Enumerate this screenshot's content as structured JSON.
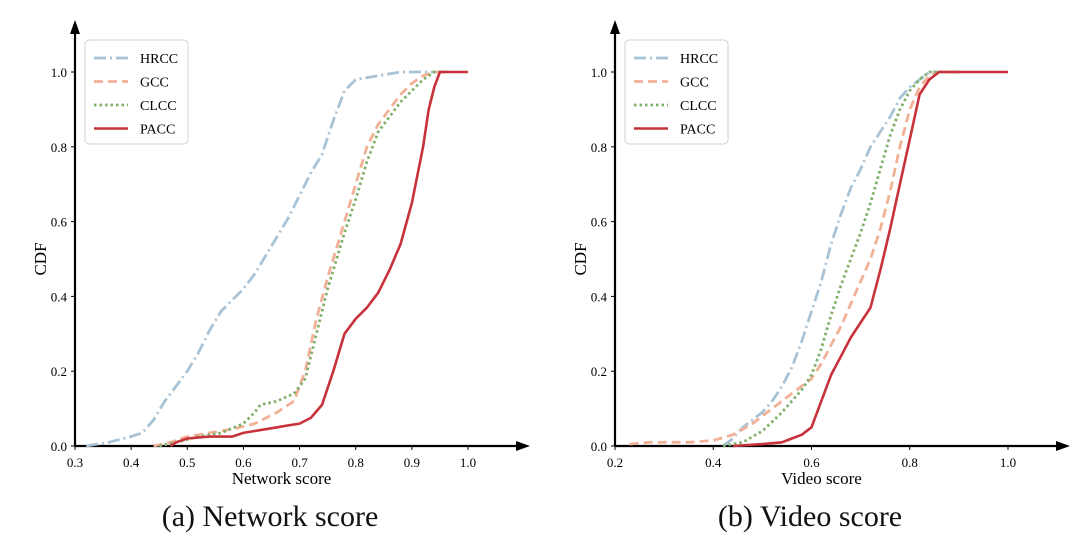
{
  "charts": [
    {
      "caption": "(a) Network score",
      "chart_data": {
        "type": "line",
        "xlabel": "Network score",
        "ylabel": "CDF",
        "xlim": [
          0.3,
          1.0
        ],
        "ylim": [
          0.0,
          1.0
        ],
        "x_ticks": [
          "0.3",
          "0.4",
          "0.5",
          "0.6",
          "0.7",
          "0.8",
          "0.9",
          "1.0"
        ],
        "y_ticks": [
          "0.0",
          "0.2",
          "0.4",
          "0.6",
          "0.8",
          "1.0"
        ],
        "grid": false,
        "legend": "top-left",
        "series": [
          {
            "name": "HRCC",
            "color": "#a9c3d6",
            "dash": "dashdot",
            "points": [
              [
                0.32,
                0.0
              ],
              [
                0.36,
                0.01
              ],
              [
                0.4,
                0.025
              ],
              [
                0.42,
                0.035
              ],
              [
                0.44,
                0.07
              ],
              [
                0.46,
                0.12
              ],
              [
                0.48,
                0.16
              ],
              [
                0.5,
                0.2
              ],
              [
                0.52,
                0.25
              ],
              [
                0.54,
                0.31
              ],
              [
                0.56,
                0.36
              ],
              [
                0.58,
                0.39
              ],
              [
                0.6,
                0.42
              ],
              [
                0.62,
                0.46
              ],
              [
                0.64,
                0.51
              ],
              [
                0.66,
                0.56
              ],
              [
                0.68,
                0.61
              ],
              [
                0.7,
                0.67
              ],
              [
                0.72,
                0.73
              ],
              [
                0.74,
                0.78
              ],
              [
                0.76,
                0.87
              ],
              [
                0.78,
                0.95
              ],
              [
                0.8,
                0.98
              ],
              [
                0.84,
                0.99
              ],
              [
                0.88,
                1.0
              ],
              [
                0.95,
                1.0
              ]
            ]
          },
          {
            "name": "GCC",
            "color": "#f2b196",
            "dash": "dashed",
            "points": [
              [
                0.44,
                0.0
              ],
              [
                0.47,
                0.01
              ],
              [
                0.5,
                0.025
              ],
              [
                0.54,
                0.035
              ],
              [
                0.58,
                0.045
              ],
              [
                0.62,
                0.06
              ],
              [
                0.66,
                0.09
              ],
              [
                0.69,
                0.12
              ],
              [
                0.71,
                0.2
              ],
              [
                0.73,
                0.34
              ],
              [
                0.75,
                0.45
              ],
              [
                0.78,
                0.6
              ],
              [
                0.8,
                0.7
              ],
              [
                0.82,
                0.8
              ],
              [
                0.84,
                0.86
              ],
              [
                0.86,
                0.9
              ],
              [
                0.88,
                0.94
              ],
              [
                0.9,
                0.97
              ],
              [
                0.92,
                0.99
              ],
              [
                0.94,
                1.0
              ],
              [
                0.96,
                1.0
              ]
            ]
          },
          {
            "name": "CLCC",
            "color": "#7fb069",
            "dash": "dotted",
            "points": [
              [
                0.45,
                0.0
              ],
              [
                0.48,
                0.01
              ],
              [
                0.52,
                0.025
              ],
              [
                0.56,
                0.035
              ],
              [
                0.6,
                0.06
              ],
              [
                0.62,
                0.09
              ],
              [
                0.63,
                0.11
              ],
              [
                0.66,
                0.12
              ],
              [
                0.69,
                0.14
              ],
              [
                0.71,
                0.18
              ],
              [
                0.73,
                0.3
              ],
              [
                0.75,
                0.42
              ],
              [
                0.78,
                0.57
              ],
              [
                0.8,
                0.66
              ],
              [
                0.82,
                0.76
              ],
              [
                0.84,
                0.84
              ],
              [
                0.86,
                0.88
              ],
              [
                0.88,
                0.92
              ],
              [
                0.9,
                0.95
              ],
              [
                0.92,
                0.98
              ],
              [
                0.94,
                1.0
              ],
              [
                0.96,
                1.0
              ]
            ]
          },
          {
            "name": "PACC",
            "color": "#c8323a",
            "dash": "solid",
            "points": [
              [
                0.47,
                0.0
              ],
              [
                0.48,
                0.01
              ],
              [
                0.5,
                0.02
              ],
              [
                0.54,
                0.025
              ],
              [
                0.58,
                0.025
              ],
              [
                0.6,
                0.035
              ],
              [
                0.62,
                0.04
              ],
              [
                0.64,
                0.045
              ],
              [
                0.66,
                0.05
              ],
              [
                0.68,
                0.055
              ],
              [
                0.7,
                0.06
              ],
              [
                0.72,
                0.075
              ],
              [
                0.74,
                0.11
              ],
              [
                0.76,
                0.2
              ],
              [
                0.78,
                0.3
              ],
              [
                0.8,
                0.34
              ],
              [
                0.82,
                0.37
              ],
              [
                0.84,
                0.41
              ],
              [
                0.86,
                0.47
              ],
              [
                0.88,
                0.54
              ],
              [
                0.9,
                0.65
              ],
              [
                0.92,
                0.8
              ],
              [
                0.93,
                0.9
              ],
              [
                0.94,
                0.96
              ],
              [
                0.95,
                1.0
              ],
              [
                1.0,
                1.0
              ]
            ]
          }
        ]
      }
    },
    {
      "caption": "(b) Video score",
      "chart_data": {
        "type": "line",
        "xlabel": "Video score",
        "ylabel": "CDF",
        "xlim": [
          0.2,
          1.0
        ],
        "ylim": [
          0.0,
          1.0
        ],
        "x_ticks": [
          "0.2",
          "0.4",
          "0.6",
          "0.8",
          "1.0"
        ],
        "y_ticks": [
          "0.0",
          "0.2",
          "0.4",
          "0.6",
          "0.8",
          "1.0"
        ],
        "grid": false,
        "legend": "top-left",
        "series": [
          {
            "name": "HRCC",
            "color": "#a9c3d6",
            "dash": "dashdot",
            "points": [
              [
                0.42,
                0.0
              ],
              [
                0.44,
                0.02
              ],
              [
                0.46,
                0.05
              ],
              [
                0.48,
                0.07
              ],
              [
                0.5,
                0.09
              ],
              [
                0.52,
                0.12
              ],
              [
                0.54,
                0.16
              ],
              [
                0.56,
                0.21
              ],
              [
                0.58,
                0.28
              ],
              [
                0.6,
                0.36
              ],
              [
                0.62,
                0.44
              ],
              [
                0.64,
                0.54
              ],
              [
                0.66,
                0.62
              ],
              [
                0.68,
                0.69
              ],
              [
                0.7,
                0.74
              ],
              [
                0.72,
                0.8
              ],
              [
                0.74,
                0.84
              ],
              [
                0.76,
                0.88
              ],
              [
                0.78,
                0.93
              ],
              [
                0.8,
                0.96
              ],
              [
                0.82,
                0.98
              ],
              [
                0.84,
                1.0
              ],
              [
                0.9,
                1.0
              ]
            ]
          },
          {
            "name": "GCC",
            "color": "#f2b196",
            "dash": "dashed",
            "points": [
              [
                0.23,
                0.005
              ],
              [
                0.27,
                0.01
              ],
              [
                0.3,
                0.01
              ],
              [
                0.35,
                0.01
              ],
              [
                0.4,
                0.015
              ],
              [
                0.44,
                0.03
              ],
              [
                0.48,
                0.06
              ],
              [
                0.52,
                0.1
              ],
              [
                0.56,
                0.14
              ],
              [
                0.6,
                0.18
              ],
              [
                0.62,
                0.22
              ],
              [
                0.64,
                0.27
              ],
              [
                0.66,
                0.32
              ],
              [
                0.68,
                0.38
              ],
              [
                0.7,
                0.44
              ],
              [
                0.72,
                0.5
              ],
              [
                0.74,
                0.58
              ],
              [
                0.76,
                0.68
              ],
              [
                0.78,
                0.8
              ],
              [
                0.8,
                0.9
              ],
              [
                0.82,
                0.96
              ],
              [
                0.84,
                0.99
              ],
              [
                0.86,
                1.0
              ],
              [
                0.9,
                1.0
              ]
            ]
          },
          {
            "name": "CLCC",
            "color": "#7fb069",
            "dash": "dotted",
            "points": [
              [
                0.42,
                0.0
              ],
              [
                0.46,
                0.01
              ],
              [
                0.5,
                0.04
              ],
              [
                0.54,
                0.09
              ],
              [
                0.56,
                0.12
              ],
              [
                0.58,
                0.15
              ],
              [
                0.6,
                0.19
              ],
              [
                0.62,
                0.26
              ],
              [
                0.64,
                0.35
              ],
              [
                0.66,
                0.43
              ],
              [
                0.68,
                0.5
              ],
              [
                0.7,
                0.57
              ],
              [
                0.72,
                0.65
              ],
              [
                0.74,
                0.74
              ],
              [
                0.76,
                0.83
              ],
              [
                0.78,
                0.9
              ],
              [
                0.8,
                0.95
              ],
              [
                0.82,
                0.98
              ],
              [
                0.84,
                1.0
              ],
              [
                0.9,
                1.0
              ]
            ]
          },
          {
            "name": "PACC",
            "color": "#c8323a",
            "dash": "solid",
            "points": [
              [
                0.44,
                0.0
              ],
              [
                0.5,
                0.005
              ],
              [
                0.54,
                0.01
              ],
              [
                0.56,
                0.02
              ],
              [
                0.58,
                0.03
              ],
              [
                0.6,
                0.05
              ],
              [
                0.62,
                0.12
              ],
              [
                0.64,
                0.19
              ],
              [
                0.66,
                0.24
              ],
              [
                0.68,
                0.29
              ],
              [
                0.7,
                0.33
              ],
              [
                0.72,
                0.37
              ],
              [
                0.74,
                0.47
              ],
              [
                0.76,
                0.58
              ],
              [
                0.78,
                0.7
              ],
              [
                0.8,
                0.82
              ],
              [
                0.82,
                0.94
              ],
              [
                0.84,
                0.98
              ],
              [
                0.86,
                1.0
              ],
              [
                1.0,
                1.0
              ]
            ]
          }
        ]
      }
    }
  ]
}
